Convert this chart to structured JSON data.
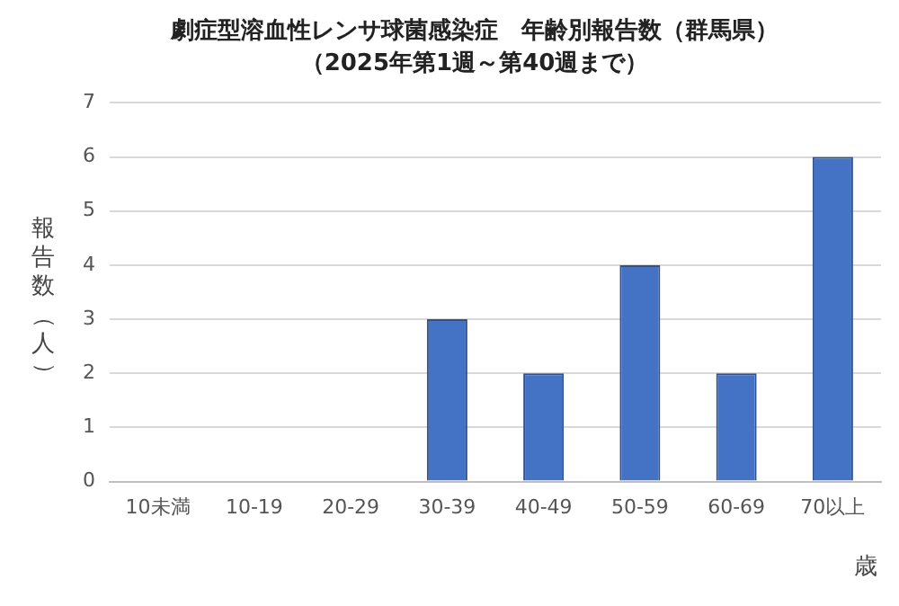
{
  "chart_data": {
    "type": "bar",
    "title": "劇症型溶血性レンサ球菌感染症　年齢別報告数（群馬県）",
    "subtitle": "（2025年第1週～第40週まで）",
    "xlabel": "歳",
    "ylabel": "報告数（人）",
    "categories": [
      "10未満",
      "10-19",
      "20-29",
      "30-39",
      "40-49",
      "50-59",
      "60-69",
      "70以上"
    ],
    "values": [
      0,
      0,
      0,
      3,
      2,
      4,
      2,
      6
    ],
    "color": "#4472c4",
    "ylim": [
      0,
      7
    ],
    "yticks": [
      0,
      1,
      2,
      3,
      4,
      5,
      6,
      7
    ],
    "grid": "y",
    "legend": false
  }
}
